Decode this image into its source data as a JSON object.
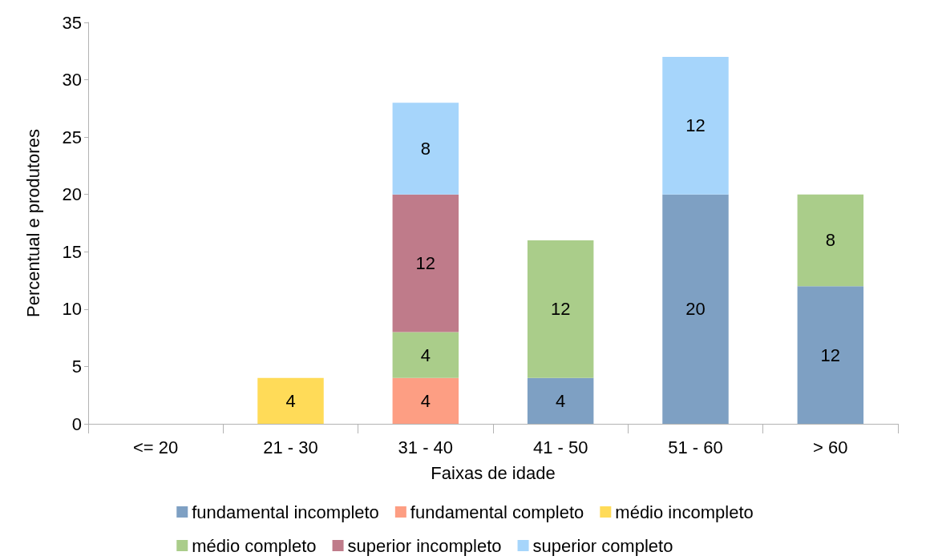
{
  "chart_data": {
    "type": "bar",
    "stacked": true,
    "xlabel": "Faixas de idade",
    "ylabel": "Percentual e produtores",
    "categories": [
      "<= 20",
      "21 - 30",
      "31 - 40",
      "41 - 50",
      "51 - 60",
      "> 60"
    ],
    "series": [
      {
        "name": "fundamental incompleto",
        "color": "#7ea0c3",
        "values": [
          null,
          null,
          null,
          4,
          20,
          12
        ]
      },
      {
        "name": "fundamental completo",
        "color": "#fd9e83",
        "values": [
          null,
          null,
          4,
          null,
          null,
          null
        ]
      },
      {
        "name": "médio incompleto",
        "color": "#ffdb58",
        "values": [
          null,
          4,
          null,
          null,
          null,
          null
        ]
      },
      {
        "name": "médio completo",
        "color": "#aacd8a",
        "values": [
          null,
          null,
          4,
          12,
          null,
          8
        ]
      },
      {
        "name": "superior incompleto",
        "color": "#bf7b8a",
        "values": [
          null,
          null,
          12,
          null,
          null,
          null
        ]
      },
      {
        "name": "superior completo",
        "color": "#a6d5fb",
        "values": [
          null,
          null,
          8,
          null,
          12,
          null
        ]
      }
    ],
    "ylim": [
      0,
      35
    ],
    "yticks": [
      0,
      5,
      10,
      15,
      20,
      25,
      30,
      35
    ],
    "grid": false,
    "legend": "bottom",
    "data_labels": true
  }
}
